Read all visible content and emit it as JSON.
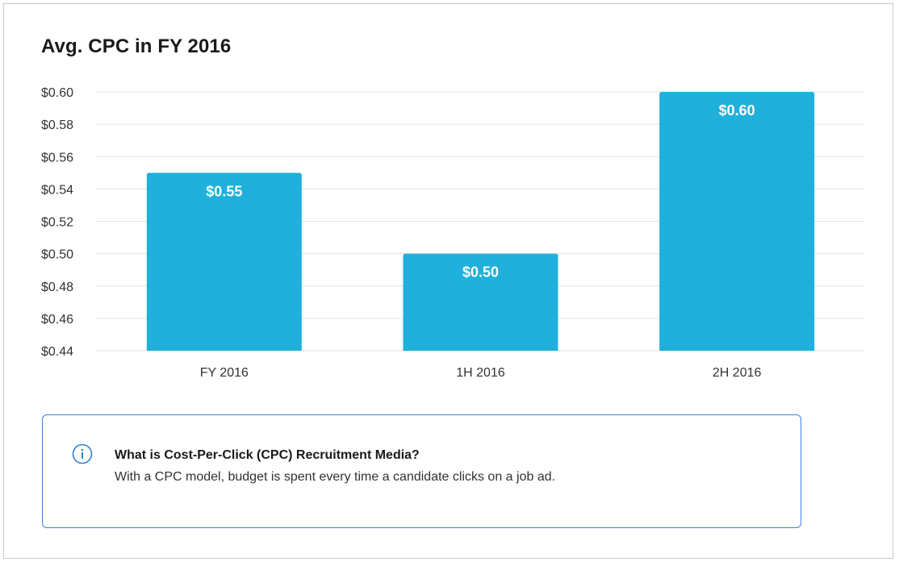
{
  "page": {
    "title": "Avg. CPC in FY 2016"
  },
  "chart_data": {
    "type": "bar",
    "title": "Avg. CPC in FY 2016",
    "categories": [
      "FY 2016",
      "1H 2016",
      "2H 2016"
    ],
    "values": [
      0.55,
      0.5,
      0.6
    ],
    "data_labels": [
      "$0.55",
      "$0.50",
      "$0.60"
    ],
    "ylim": [
      0.44,
      0.6
    ],
    "y_ticks": [
      0.44,
      0.46,
      0.48,
      0.5,
      0.52,
      0.54,
      0.56,
      0.58,
      0.6
    ],
    "y_tick_labels": [
      "$0.44",
      "$0.46",
      "$0.48",
      "$0.50",
      "$0.52",
      "$0.54",
      "$0.56",
      "$0.58",
      "$0.60"
    ],
    "xlabel": "",
    "ylabel": "",
    "grid": true,
    "bar_color": "#1fb0dc",
    "grid_color": "#e3e3e3"
  },
  "info": {
    "icon": "info-circle-icon",
    "heading": "What is Cost-Per-Click (CPC) Recruitment Media?",
    "body": "With a CPC model, budget is spent every time a candidate clicks on a job ad.",
    "border_color": "#3a86d8",
    "icon_color": "#2f7fd6"
  }
}
